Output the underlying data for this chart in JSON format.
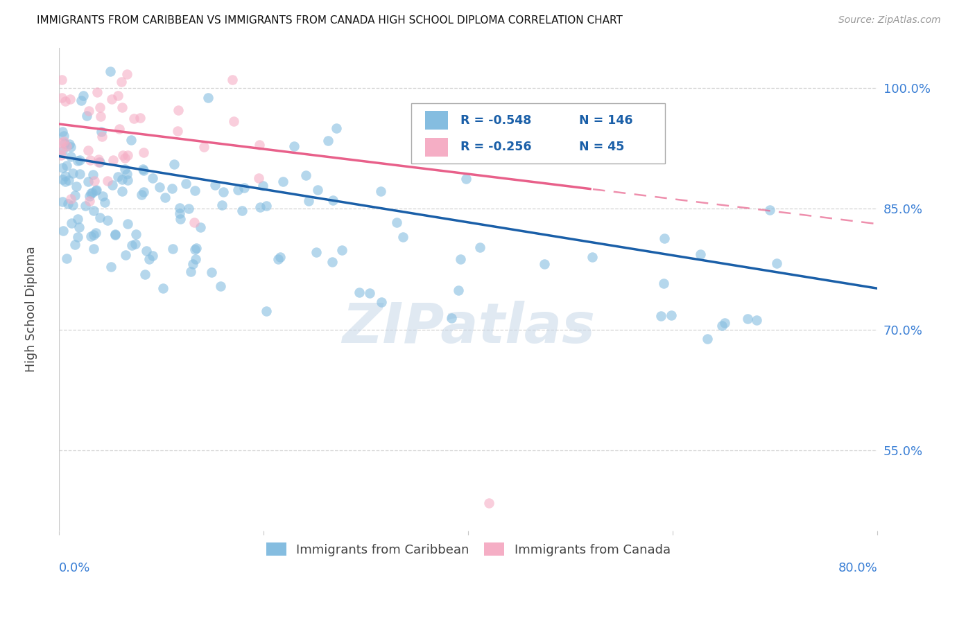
{
  "title": "IMMIGRANTS FROM CARIBBEAN VS IMMIGRANTS FROM CANADA HIGH SCHOOL DIPLOMA CORRELATION CHART",
  "source": "Source: ZipAtlas.com",
  "ylabel": "High School Diploma",
  "legend_label1": "Immigrants from Caribbean",
  "legend_label2": "Immigrants from Canada",
  "R1": -0.548,
  "N1": 146,
  "R2": -0.256,
  "N2": 45,
  "xlim": [
    0.0,
    80.0
  ],
  "ylim": [
    45.0,
    105.0
  ],
  "yticks": [
    55.0,
    70.0,
    85.0,
    100.0
  ],
  "color_blue": "#85bde0",
  "color_pink": "#f5aec5",
  "line_blue": "#1a5fa8",
  "line_pink": "#e8608a",
  "background": "#ffffff",
  "grid_color": "#c8c8c8",
  "watermark": "ZIPatlas",
  "title_color": "#111111",
  "seed": 42,
  "blue_intercept": 91.5,
  "blue_slope": -0.205,
  "pink_intercept": 95.5,
  "pink_slope": -0.155
}
